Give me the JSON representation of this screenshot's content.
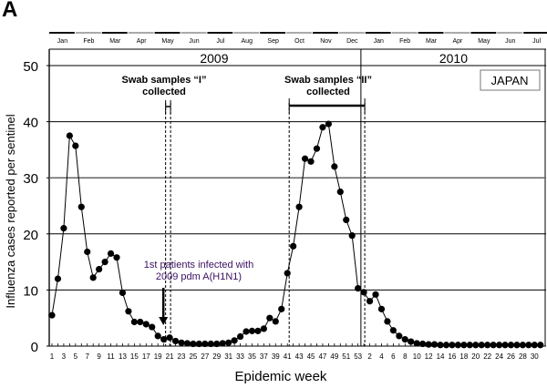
{
  "panel_label": "A",
  "chart_data": {
    "type": "line",
    "title": "",
    "xlabel": "Epidemic week",
    "ylabel": "Influenza cases reported per sentinel",
    "ylim": [
      0,
      50
    ],
    "yticks": [
      0,
      10,
      20,
      30,
      40,
      50
    ],
    "grid": "horizontal",
    "region": "JAPAN",
    "years": [
      {
        "label": "2009",
        "weeks": "1-53"
      },
      {
        "label": "2010",
        "weeks": "1-31"
      }
    ],
    "months_top_axis": [
      "Jan",
      "Feb",
      "Mar",
      "Apr",
      "May",
      "Jun",
      "Jul",
      "Aug",
      "Sep",
      "Oct",
      "Nov",
      "Dec",
      "Jan",
      "Feb",
      "Mar",
      "Apr",
      "May",
      "Jun",
      "Jul"
    ],
    "xtick_labels": [
      "1",
      "3",
      "5",
      "7",
      "9",
      "11",
      "13",
      "15",
      "17",
      "19",
      "21",
      "23",
      "25",
      "27",
      "29",
      "31",
      "33",
      "35",
      "37",
      "39",
      "41",
      "43",
      "45",
      "47",
      "49",
      "51",
      "53",
      "2",
      "4",
      "6",
      "8",
      "10",
      "12",
      "14",
      "16",
      "18",
      "20",
      "22",
      "24",
      "26",
      "28",
      "30"
    ],
    "series": [
      {
        "name": "2009",
        "weeks": [
          1,
          2,
          3,
          4,
          5,
          6,
          7,
          8,
          9,
          10,
          11,
          12,
          13,
          14,
          15,
          16,
          17,
          18,
          19,
          20,
          21,
          22,
          23,
          24,
          25,
          26,
          27,
          28,
          29,
          30,
          31,
          32,
          33,
          34,
          35,
          36,
          37,
          38,
          39,
          40,
          41,
          42,
          43,
          44,
          45,
          46,
          47,
          48,
          49,
          50,
          51,
          52,
          53
        ],
        "values": [
          5.5,
          12,
          21,
          37.5,
          35.7,
          24.8,
          16.8,
          12.2,
          13.7,
          15,
          16.5,
          15.8,
          9.5,
          6.2,
          4.3,
          4.3,
          3.9,
          3.4,
          1.8,
          1.2,
          1.5,
          0.9,
          0.6,
          0.5,
          0.4,
          0.4,
          0.4,
          0.4,
          0.4,
          0.5,
          0.6,
          1.0,
          1.7,
          2.6,
          2.7,
          2.7,
          3.1,
          5.0,
          4.4,
          6.6,
          13,
          17.8,
          24.8,
          33.4,
          32.9,
          35.2,
          39,
          39.6,
          32,
          27.5,
          22.5,
          19.7,
          10.3
        ]
      },
      {
        "name": "2010",
        "weeks": [
          1,
          2,
          3,
          4,
          5,
          6,
          7,
          8,
          9,
          10,
          11,
          12,
          13,
          14,
          15,
          16,
          17,
          18,
          19,
          20,
          21,
          22,
          23,
          24,
          25,
          26,
          27,
          28,
          29,
          30,
          31
        ],
        "values": [
          9.6,
          8.0,
          9.2,
          6.6,
          4.4,
          2.8,
          1.8,
          1.2,
          0.8,
          0.5,
          0.4,
          0.3,
          0.3,
          0.2,
          0.2,
          0.2,
          0.2,
          0.2,
          0.2,
          0.2,
          0.2,
          0.2,
          0.2,
          0.2,
          0.2,
          0.2,
          0.2,
          0.2,
          0.2,
          0.2,
          0.2
        ]
      }
    ],
    "annotations": [
      {
        "text_line1": "Swab samples “I”",
        "text_line2": "collected",
        "weeks": [
          20,
          21
        ],
        "year": "2009"
      },
      {
        "text_line1": "Swab samples “II”",
        "text_line2": "collected",
        "weeks": [
          41,
          "2010-1"
        ],
        "year": "2009-2010"
      },
      {
        "text_line1": "1st patients infected with",
        "text_line2": "2009 pdm A(H1N1)",
        "arrow_week": 19,
        "year": "2009"
      }
    ]
  }
}
